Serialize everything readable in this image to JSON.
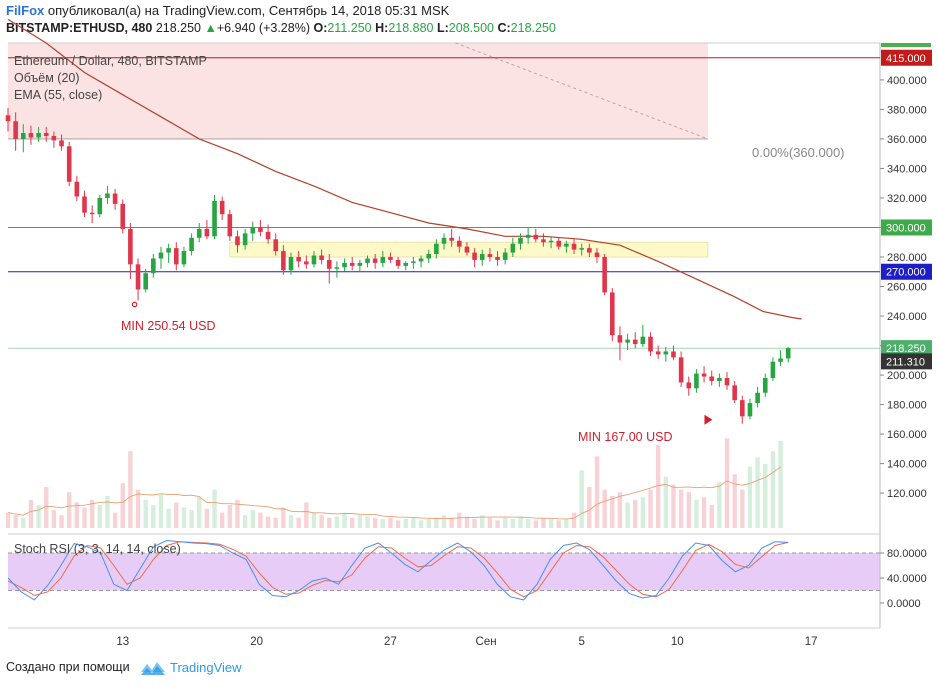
{
  "header": {
    "publisher": "FilFox",
    "published_text": "опубликовал(а) на TradingView.com, Сентябрь 14, 2018 05:31 MSK",
    "symbol": "BITSTAMP:ETHUSD, 480",
    "last": "218.250",
    "change": "+6.940 (+3.28%)",
    "o_label": "O:",
    "o_value": "211.250",
    "h_label": "H:",
    "h_value": "218.880",
    "l_label": "L:",
    "l_value": "208.500",
    "c_label": "C:",
    "c_value": "218.250"
  },
  "legend": {
    "title": "Ethereum / Dollar, 480, BITSTAMP",
    "volume": "Объём (20)",
    "ema": "EMA (55, close)",
    "stoch": "Stoch RSI (3, 3, 14, 14, close)"
  },
  "colors": {
    "up": "#26a541",
    "down": "#e0364c",
    "ema": "#b5402a",
    "zone": "#fbe3e4",
    "band": "#fdf9c8",
    "rsi_band": "#e8ccf8",
    "k_line": "#4a8ff0",
    "d_line": "#f06a4a",
    "line_415": "#c41a1a",
    "line_300": "#3faa4a",
    "line_270": "#1e1ec8",
    "last_price": "#4caf6a"
  },
  "annotations": {
    "min_left": "MIN 250.54 USD",
    "min_right": "MIN 167.00 USD",
    "fib_label": "0.00%(360.000)"
  },
  "footer": {
    "created_with": "Создано при помощи",
    "brand": "TradingView"
  },
  "chart_data": {
    "type": "candlestick",
    "y_ticks": [
      "400.000",
      "380.000",
      "360.000",
      "340.000",
      "320.000",
      "300.000",
      "280.000",
      "260.000",
      "240.000",
      "220.000",
      "200.000",
      "180.000",
      "160.000",
      "140.000",
      "120.000"
    ],
    "rsi_ticks": [
      "80.0000",
      "40.0000",
      "0.0000"
    ],
    "x_labels": [
      {
        "label": "13",
        "x": 12
      },
      {
        "label": "20",
        "x": 19
      },
      {
        "label": "27",
        "x": 26
      },
      {
        "label": "Сен",
        "x": 31
      },
      {
        "label": "5",
        "x": 36
      },
      {
        "label": "10",
        "x": 41
      },
      {
        "label": "17",
        "x": 48
      }
    ],
    "price_range": [
      95,
      425
    ],
    "x_range": [
      6,
      51.6
    ],
    "level_lines": [
      {
        "value": 415,
        "label": "415.000"
      },
      {
        "value": 300,
        "label": "300.000"
      },
      {
        "value": 270,
        "label": "270.000"
      },
      {
        "value": 218.25,
        "label": "218.250"
      },
      {
        "value": 211.31,
        "label": "211.310"
      }
    ],
    "resistance_zone": [
      360,
      425
    ],
    "yellow_band": [
      280,
      290
    ],
    "min_points": [
      {
        "x": 12.7,
        "value": 250.54
      },
      {
        "x": 43.1,
        "value": 167.0
      }
    ],
    "ema": [
      [
        6,
        441
      ],
      [
        8,
        425
      ],
      [
        10,
        405
      ],
      [
        12,
        390
      ],
      [
        14,
        375
      ],
      [
        16,
        360
      ],
      [
        18,
        350
      ],
      [
        20,
        338
      ],
      [
        22,
        328
      ],
      [
        24,
        317
      ],
      [
        26,
        310
      ],
      [
        28,
        303
      ],
      [
        30,
        299
      ],
      [
        32,
        294
      ],
      [
        34,
        294
      ],
      [
        36,
        292
      ],
      [
        38,
        288
      ],
      [
        40,
        277
      ],
      [
        42,
        265
      ],
      [
        44,
        253
      ],
      [
        45.5,
        243
      ],
      [
        47,
        239
      ],
      [
        47.5,
        238
      ]
    ],
    "candles": [
      [
        6.0,
        376,
        381,
        365,
        372
      ],
      [
        6.4,
        372,
        378,
        352,
        360
      ],
      [
        6.8,
        360,
        370,
        351,
        364
      ],
      [
        7.2,
        364,
        369,
        356,
        361
      ],
      [
        7.6,
        361,
        368,
        358,
        364
      ],
      [
        8.0,
        364,
        368,
        358,
        362
      ],
      [
        8.4,
        362,
        365,
        354,
        359
      ],
      [
        8.8,
        359,
        363,
        352,
        355
      ],
      [
        9.2,
        355,
        358,
        328,
        331
      ],
      [
        9.6,
        331,
        335,
        318,
        321
      ],
      [
        10.0,
        321,
        325,
        307,
        310
      ],
      [
        10.4,
        310,
        315,
        303,
        309
      ],
      [
        10.8,
        309,
        322,
        307,
        320
      ],
      [
        11.2,
        320,
        328,
        316,
        323
      ],
      [
        11.6,
        323,
        326,
        312,
        316
      ],
      [
        12.0,
        316,
        319,
        296,
        299
      ],
      [
        12.4,
        299,
        303,
        265,
        275
      ],
      [
        12.8,
        275,
        279,
        250.54,
        258
      ],
      [
        13.2,
        258,
        272,
        256,
        269
      ],
      [
        13.6,
        269,
        282,
        266,
        279
      ],
      [
        14.0,
        279,
        287,
        272,
        283
      ],
      [
        14.4,
        283,
        289,
        276,
        286
      ],
      [
        14.8,
        286,
        290,
        271,
        275
      ],
      [
        15.2,
        275,
        287,
        273,
        284
      ],
      [
        15.6,
        284,
        296,
        281,
        293
      ],
      [
        16.0,
        293,
        303,
        290,
        299
      ],
      [
        16.4,
        299,
        305,
        292,
        294
      ],
      [
        16.8,
        294,
        322,
        292,
        318
      ],
      [
        17.2,
        318,
        321,
        305,
        309
      ],
      [
        17.6,
        309,
        312,
        291,
        294
      ],
      [
        18.0,
        294,
        298,
        283,
        288
      ],
      [
        18.4,
        288,
        299,
        285,
        296
      ],
      [
        18.8,
        296,
        304,
        291,
        300
      ],
      [
        19.2,
        300,
        305,
        294,
        297
      ],
      [
        19.6,
        297,
        302,
        289,
        292
      ],
      [
        20.0,
        292,
        296,
        281,
        284
      ],
      [
        20.4,
        284,
        288,
        268,
        271
      ],
      [
        20.8,
        271,
        283,
        268,
        280
      ],
      [
        21.2,
        280,
        284,
        273,
        277
      ],
      [
        21.6,
        277,
        281,
        272,
        275
      ],
      [
        22.0,
        275,
        284,
        273,
        281
      ],
      [
        22.4,
        281,
        285,
        275,
        278
      ],
      [
        22.8,
        278,
        282,
        262,
        272
      ],
      [
        23.2,
        272,
        277,
        266,
        273
      ],
      [
        23.6,
        273,
        279,
        270,
        276
      ],
      [
        24.0,
        276,
        280,
        271,
        274
      ],
      [
        24.4,
        274,
        278,
        270,
        276
      ],
      [
        24.8,
        276,
        281,
        273,
        279
      ],
      [
        25.2,
        279,
        282,
        272,
        276
      ],
      [
        25.6,
        276,
        284,
        273,
        280
      ],
      [
        26.0,
        280,
        283,
        276,
        278
      ],
      [
        26.4,
        278,
        280,
        272,
        274
      ],
      [
        26.8,
        274,
        277,
        271,
        276
      ],
      [
        27.2,
        276,
        280,
        272,
        277
      ],
      [
        27.6,
        277,
        281,
        273,
        279
      ],
      [
        28.0,
        279,
        285,
        276,
        282
      ],
      [
        28.4,
        282,
        292,
        279,
        289
      ],
      [
        28.8,
        289,
        296,
        285,
        293
      ],
      [
        29.2,
        293,
        299,
        287,
        291
      ],
      [
        29.6,
        291,
        294,
        283,
        287
      ],
      [
        30.0,
        287,
        290,
        281,
        283
      ],
      [
        30.4,
        283,
        286,
        273,
        278
      ],
      [
        30.8,
        278,
        285,
        274,
        282
      ],
      [
        31.2,
        282,
        286,
        277,
        280
      ],
      [
        31.6,
        280,
        284,
        274,
        278
      ],
      [
        32.0,
        278,
        286,
        275,
        283
      ],
      [
        32.4,
        283,
        293,
        280,
        289
      ],
      [
        32.8,
        289,
        296,
        285,
        293
      ],
      [
        33.2,
        293,
        300,
        289,
        295
      ],
      [
        33.6,
        295,
        299,
        290,
        292
      ],
      [
        34.0,
        292,
        296,
        287,
        290
      ],
      [
        34.4,
        290,
        294,
        286,
        291
      ],
      [
        34.8,
        291,
        293,
        285,
        287
      ],
      [
        35.2,
        287,
        291,
        283,
        289
      ],
      [
        35.6,
        289,
        292,
        282,
        285
      ],
      [
        36.0,
        285,
        289,
        281,
        286
      ],
      [
        36.4,
        286,
        289,
        280,
        283
      ],
      [
        36.8,
        283,
        286,
        276,
        280
      ],
      [
        37.2,
        280,
        282,
        254,
        256
      ],
      [
        37.6,
        256,
        259,
        223,
        227
      ],
      [
        38.0,
        227,
        233,
        210,
        222
      ],
      [
        38.4,
        222,
        228,
        217,
        224
      ],
      [
        38.8,
        224,
        229,
        218,
        221
      ],
      [
        39.2,
        221,
        234,
        219,
        226
      ],
      [
        39.6,
        226,
        229,
        213,
        216
      ],
      [
        40.0,
        216,
        220,
        211,
        214
      ],
      [
        40.4,
        214,
        219,
        209,
        216
      ],
      [
        40.8,
        216,
        220,
        210,
        212
      ],
      [
        41.2,
        212,
        216,
        192,
        195
      ],
      [
        41.6,
        195,
        199,
        186,
        191
      ],
      [
        42.0,
        191,
        204,
        188,
        201
      ],
      [
        42.4,
        201,
        206,
        195,
        199
      ],
      [
        42.8,
        199,
        203,
        193,
        196
      ],
      [
        43.2,
        196,
        201,
        192,
        198
      ],
      [
        43.6,
        198,
        202,
        190,
        193
      ],
      [
        44.0,
        193,
        196,
        181,
        183
      ],
      [
        44.4,
        183,
        186,
        167,
        172
      ],
      [
        44.8,
        172,
        184,
        170,
        181
      ],
      [
        45.2,
        181,
        192,
        178,
        188
      ],
      [
        45.6,
        188,
        201,
        185,
        198
      ],
      [
        46.0,
        198,
        212,
        196,
        209
      ],
      [
        46.4,
        209,
        217,
        206,
        211.25
      ],
      [
        46.8,
        211.25,
        218.88,
        208.5,
        218.25
      ]
    ],
    "volume": [
      0.12,
      0.1,
      0.08,
      0.22,
      0.18,
      0.32,
      0.14,
      0.1,
      0.28,
      0.2,
      0.16,
      0.22,
      0.18,
      0.25,
      0.12,
      0.35,
      0.6,
      0.3,
      0.22,
      0.18,
      0.26,
      0.15,
      0.2,
      0.16,
      0.14,
      0.24,
      0.15,
      0.3,
      0.12,
      0.18,
      0.22,
      0.1,
      0.14,
      0.12,
      0.09,
      0.08,
      0.16,
      0.1,
      0.08,
      0.2,
      0.12,
      0.1,
      0.08,
      0.09,
      0.12,
      0.08,
      0.1,
      0.09,
      0.08,
      0.07,
      0.08,
      0.06,
      0.07,
      0.08,
      0.06,
      0.07,
      0.08,
      0.1,
      0.08,
      0.12,
      0.09,
      0.07,
      0.1,
      0.08,
      0.06,
      0.08,
      0.07,
      0.09,
      0.07,
      0.06,
      0.08,
      0.07,
      0.06,
      0.07,
      0.12,
      0.45,
      0.32,
      0.56,
      0.3,
      0.25,
      0.28,
      0.2,
      0.22,
      0.24,
      0.3,
      0.65,
      0.4,
      0.34,
      0.3,
      0.28,
      0.22,
      0.24,
      0.18,
      0.36,
      0.7,
      0.42,
      0.3,
      0.48,
      0.55,
      0.5,
      0.6,
      0.68
    ],
    "stoch_k": [
      40,
      18,
      5,
      28,
      60,
      95,
      90,
      80,
      30,
      20,
      55,
      90,
      100,
      98,
      96,
      95,
      92,
      80,
      70,
      30,
      12,
      10,
      20,
      35,
      40,
      30,
      60,
      88,
      96,
      80,
      62,
      50,
      68,
      85,
      96,
      82,
      60,
      30,
      10,
      5,
      30,
      70,
      92,
      96,
      85,
      60,
      35,
      15,
      8,
      12,
      40,
      75,
      96,
      92,
      68,
      50,
      60,
      88,
      98,
      97
    ],
    "stoch_d": [
      35,
      25,
      12,
      18,
      40,
      75,
      92,
      88,
      60,
      30,
      40,
      70,
      92,
      98,
      97,
      96,
      94,
      86,
      75,
      48,
      25,
      14,
      16,
      28,
      36,
      34,
      45,
      72,
      90,
      88,
      72,
      58,
      60,
      76,
      90,
      88,
      72,
      48,
      22,
      10,
      20,
      50,
      80,
      92,
      90,
      74,
      52,
      30,
      14,
      10,
      22,
      52,
      84,
      94,
      82,
      62,
      56,
      74,
      92,
      97
    ]
  }
}
